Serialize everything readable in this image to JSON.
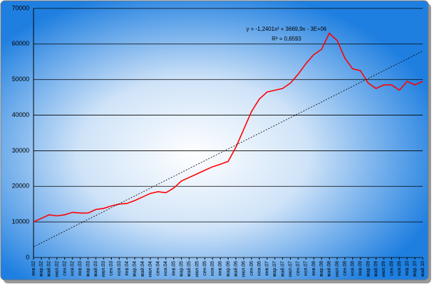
{
  "chart_data": {
    "type": "line",
    "annotations": [
      "y = -1,2401x² + 3669,9x - 3E+06",
      "R² = 0,6593"
    ],
    "categories": [
      "янв.02",
      "мар.02",
      "май.02",
      "июл.02",
      "сен.02",
      "ноя.02",
      "янв.03",
      "мар.03",
      "май.03",
      "июл.03",
      "сен.03",
      "ноя.03",
      "янв.04",
      "мар.04",
      "май.04",
      "июл.04",
      "сен.04",
      "ноя.04",
      "янв.05",
      "мар.05",
      "май.05",
      "июл.05",
      "сен.05",
      "ноя.05",
      "янв.06",
      "мар.06",
      "май.06",
      "июл.06",
      "сен.06",
      "ноя.06",
      "янв.07",
      "мар.07",
      "май.07",
      "июл.07",
      "сен.07",
      "ноя.07",
      "янв.08",
      "мар.08",
      "май.08",
      "июл.08",
      "сен.08",
      "ноя.08",
      "янв.09",
      "мар.09",
      "май.09",
      "июл.09",
      "сен.09",
      "ноя.09",
      "янв.10",
      "мар.10",
      "май.10"
    ],
    "series": [
      {
        "color": "#ff0000",
        "style": "solid",
        "values": [
          10000,
          11000,
          12000,
          11700,
          12000,
          12700,
          12500,
          12500,
          13500,
          13800,
          14500,
          15000,
          15200,
          16000,
          17000,
          18000,
          18500,
          18200,
          19500,
          21500,
          22500,
          23500,
          24500,
          25500,
          26200,
          27000,
          31000,
          36000,
          41000,
          44500,
          46500,
          47000,
          47500,
          49000,
          51500,
          54500,
          57000,
          58500,
          63000,
          61000,
          56000,
          53000,
          52500,
          49000,
          47500,
          48500,
          48500,
          47000,
          49500,
          48500,
          49500
        ]
      },
      {
        "color": "#000000",
        "style": "dashed",
        "values": [
          3000,
          4100,
          5200,
          6300,
          7400,
          8500,
          9600,
          10700,
          11800,
          12900,
          14000,
          15100,
          16200,
          17300,
          18400,
          19500,
          20600,
          21700,
          22800,
          23900,
          25000,
          26100,
          27200,
          28300,
          29400,
          30500,
          31600,
          32700,
          33800,
          34900,
          36000,
          37100,
          38200,
          39300,
          40400,
          41500,
          42600,
          43700,
          44800,
          45900,
          47000,
          48100,
          49200,
          50300,
          51400,
          52500,
          53600,
          54700,
          55800,
          56900,
          58000
        ]
      }
    ],
    "ylim": [
      0,
      70000
    ],
    "yticks": [
      0,
      10000,
      20000,
      30000,
      40000,
      50000,
      60000,
      70000
    ],
    "grid": true
  }
}
